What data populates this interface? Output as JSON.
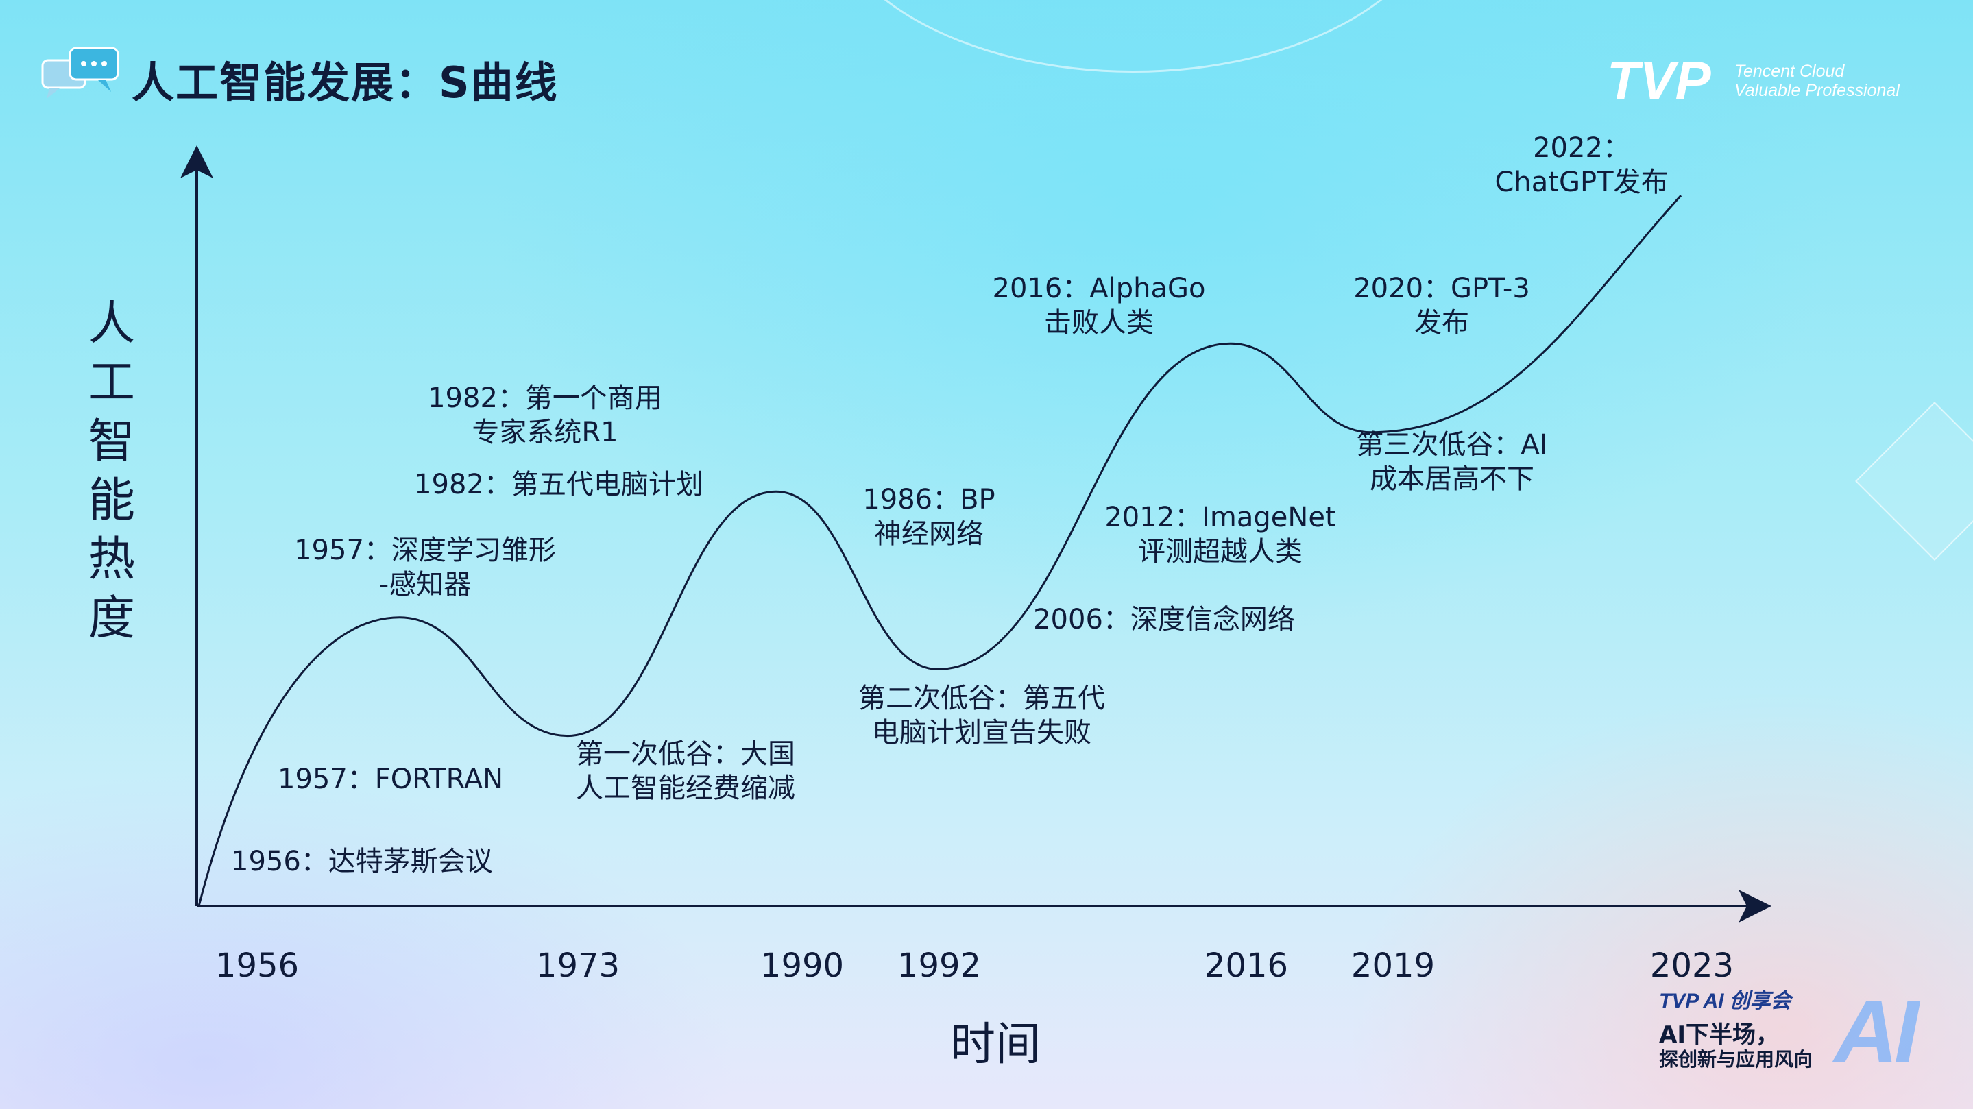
{
  "slide": {
    "title": "人工智能发展：S曲线",
    "logo": {
      "wordmark": "TVP",
      "line1": "Tencent Cloud",
      "line2": "Valuable Professional"
    },
    "badge": {
      "brand": "TVP AI 创享会",
      "line1": "AI下半场，",
      "line2": "探创新与应用风向",
      "big_text": "AI"
    },
    "icons": [
      "chat-bubbles-icon"
    ]
  },
  "chart_data": {
    "type": "line",
    "title": "",
    "xlabel": "时间",
    "ylabel": "人工智能热度",
    "x_ticks": [
      "1956",
      "1973",
      "1990",
      "1992",
      "2016",
      "2019",
      "2023"
    ],
    "curve": "S曲线",
    "turning_points": [
      {
        "year": "1956",
        "level": 0.0,
        "kind": "start"
      },
      {
        "year": "1957",
        "level": 0.39,
        "kind": "peak"
      },
      {
        "year": "1973",
        "level": 0.23,
        "kind": "trough"
      },
      {
        "year": "1990",
        "level": 0.56,
        "kind": "peak"
      },
      {
        "year": "1992",
        "level": 0.32,
        "kind": "trough"
      },
      {
        "year": "2016",
        "level": 0.76,
        "kind": "peak"
      },
      {
        "year": "2019",
        "level": 0.64,
        "kind": "trough"
      },
      {
        "year": "2023",
        "level": 0.96,
        "kind": "end"
      }
    ],
    "annotations": [
      {
        "lines": [
          "1956：达特茅斯会议"
        ]
      },
      {
        "lines": [
          "1957：FORTRAN"
        ]
      },
      {
        "lines": [
          "1957：深度学习雏形",
          "-感知器"
        ]
      },
      {
        "lines": [
          "第一次低谷：大国",
          "人工智能经费缩减"
        ]
      },
      {
        "lines": [
          "1982：第一个商用",
          "专家系统R1"
        ]
      },
      {
        "lines": [
          "1982：第五代电脑计划"
        ]
      },
      {
        "lines": [
          "1986：BP",
          "神经网络"
        ]
      },
      {
        "lines": [
          "第二次低谷：第五代",
          "电脑计划宣告失败"
        ]
      },
      {
        "lines": [
          "2006：深度信念网络"
        ]
      },
      {
        "lines": [
          "2012：ImageNet",
          "评测超越人类"
        ]
      },
      {
        "lines": [
          "2016：AlphaGo",
          "击败人类"
        ]
      },
      {
        "lines": [
          "2020：GPT-3",
          "发布"
        ]
      },
      {
        "lines": [
          "第三次低谷：AI",
          "成本居高不下"
        ]
      },
      {
        "lines": [
          "2022：",
          "ChatGPT发布"
        ]
      }
    ],
    "colors": {
      "curve": "#0f1b3a",
      "axes": "#0f1b3a",
      "text": "#0f1b3a"
    }
  }
}
